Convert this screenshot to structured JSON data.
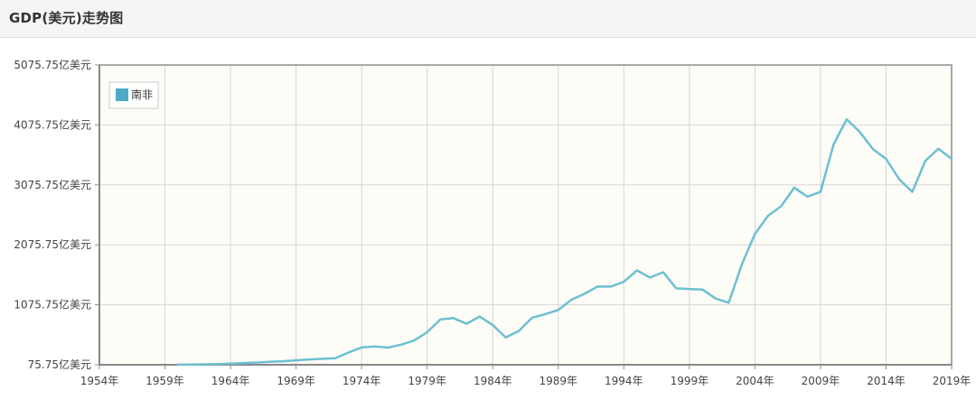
{
  "header": {
    "title": "GDP(美元)走势图"
  },
  "chart_data": {
    "type": "line",
    "title": "GDP(美元)走势图",
    "xlabel": "",
    "ylabel": "",
    "xlim": [
      1954,
      2019
    ],
    "ylim": [
      75.75,
      5075.75
    ],
    "y_ticks": [
      75.75,
      1075.75,
      2075.75,
      3075.75,
      4075.75,
      5075.75
    ],
    "y_tick_labels": [
      "75.75亿美元",
      "1075.75亿美元",
      "2075.75亿美元",
      "3075.75亿美元",
      "4075.75亿美元",
      "5075.75亿美元"
    ],
    "x_ticks": [
      1954,
      1959,
      1964,
      1969,
      1974,
      1979,
      1984,
      1989,
      1994,
      1999,
      2004,
      2009,
      2014,
      2019
    ],
    "x_tick_labels": [
      "1954年",
      "1959年",
      "1964年",
      "1969年",
      "1974年",
      "1979年",
      "1984年",
      "1989年",
      "1994年",
      "1999年",
      "2004年",
      "2009年",
      "2014年",
      "2019年"
    ],
    "grid": true,
    "legend_position": "top-left",
    "colors": {
      "line": "#6cc0d2",
      "legend_swatch": "#4bacc6",
      "plot_bg": "#fdfcf7",
      "grid": "#d6d6d6",
      "frame": "#a8a8a8"
    },
    "series": [
      {
        "name": "南非",
        "x": [
          1960,
          1961,
          1962,
          1963,
          1964,
          1965,
          1966,
          1967,
          1968,
          1969,
          1970,
          1971,
          1972,
          1973,
          1974,
          1975,
          1976,
          1977,
          1978,
          1979,
          1980,
          1981,
          1982,
          1983,
          1984,
          1985,
          1986,
          1987,
          1988,
          1989,
          1990,
          1991,
          1992,
          1993,
          1994,
          1995,
          1996,
          1997,
          1998,
          1999,
          2000,
          2001,
          2002,
          2003,
          2004,
          2005,
          2006,
          2007,
          2008,
          2009,
          2010,
          2011,
          2012,
          2013,
          2014,
          2015,
          2016,
          2017,
          2018,
          2019
        ],
        "values": [
          78,
          80,
          83,
          88,
          95,
          105,
          113,
          125,
          135,
          150,
          165,
          175,
          185,
          280,
          365,
          380,
          362,
          410,
          480,
          620,
          830,
          855,
          760,
          880,
          740,
          530,
          640,
          860,
          920,
          990,
          1160,
          1260,
          1380,
          1380,
          1460,
          1650,
          1530,
          1620,
          1350,
          1340,
          1330,
          1180,
          1110,
          1750,
          2260,
          2560,
          2720,
          3030,
          2880,
          2960,
          3750,
          4170,
          3960,
          3670,
          3510,
          3170,
          2960,
          3480,
          3680,
          3510
        ]
      }
    ]
  }
}
